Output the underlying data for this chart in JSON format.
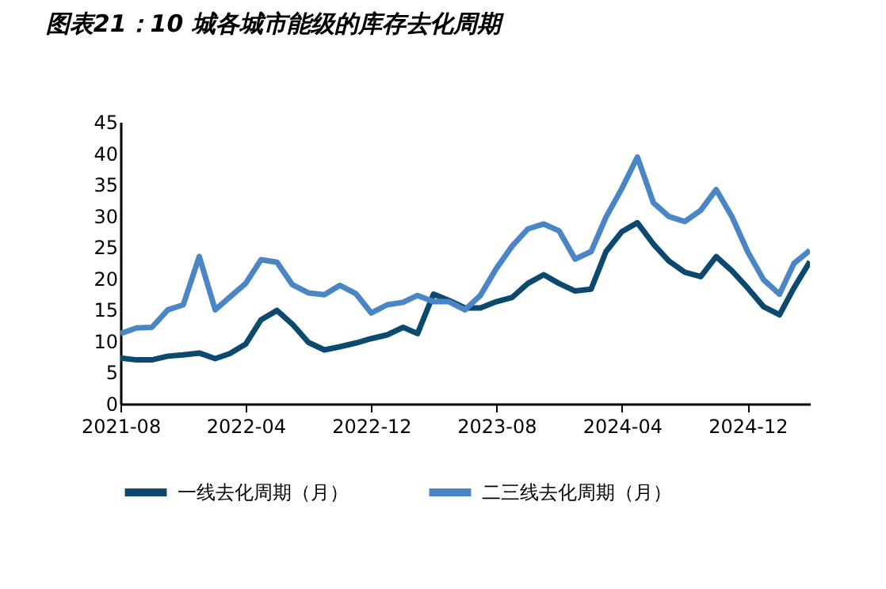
{
  "chart_data": {
    "type": "line",
    "title": "图表21：10 城各城市能级的库存去化周期",
    "x": [
      "2021-08",
      "2021-09",
      "2021-10",
      "2021-11",
      "2021-12",
      "2022-01",
      "2022-02",
      "2022-03",
      "2022-04",
      "2022-05",
      "2022-06",
      "2022-07",
      "2022-08",
      "2022-09",
      "2022-10",
      "2022-11",
      "2022-12",
      "2023-01",
      "2023-02",
      "2023-03",
      "2023-04",
      "2023-05",
      "2023-06",
      "2023-07",
      "2023-08",
      "2023-09",
      "2023-10",
      "2023-11",
      "2023-12",
      "2024-01",
      "2024-02",
      "2024-03",
      "2024-04",
      "2024-05",
      "2024-06",
      "2024-07",
      "2024-08",
      "2024-09",
      "2024-10",
      "2024-11",
      "2024-12",
      "2025-01",
      "2025-02",
      "2025-03",
      "2025-04"
    ],
    "series": [
      {
        "name": "一线去化周期（月）",
        "color": "#0b4a6e",
        "values": [
          7.3,
          7.0,
          7.0,
          7.6,
          7.8,
          8.1,
          7.2,
          8.0,
          9.5,
          13.4,
          14.9,
          12.7,
          9.8,
          8.6,
          9.1,
          9.7,
          10.4,
          11.0,
          12.2,
          11.2,
          17.5,
          16.5,
          15.3,
          15.3,
          16.3,
          17.0,
          19.2,
          20.6,
          19.2,
          18.0,
          18.3,
          24.3,
          27.5,
          28.9,
          25.5,
          22.8,
          21.0,
          20.3,
          23.5,
          21.2,
          18.5,
          15.5,
          14.2,
          18.5,
          22.7
        ]
      },
      {
        "name": "二三线去化周期（月）",
        "color": "#4a86c5",
        "values": [
          11.2,
          12.1,
          12.2,
          15.0,
          15.8,
          23.5,
          15.0,
          17.0,
          19.2,
          23.0,
          22.6,
          19.0,
          17.7,
          17.4,
          18.9,
          17.6,
          14.5,
          15.8,
          16.2,
          17.3,
          16.3,
          16.3,
          15.0,
          17.3,
          21.6,
          25.2,
          27.9,
          28.7,
          27.6,
          23.1,
          24.3,
          29.8,
          34.4,
          39.4,
          32.1,
          29.9,
          29.1,
          30.9,
          34.2,
          29.8,
          24.3,
          19.8,
          17.5,
          22.4,
          24.5
        ]
      }
    ],
    "xlim": [
      "2021-08",
      "2025-04"
    ],
    "xticks": [
      "2021-08",
      "2022-04",
      "2022-12",
      "2023-08",
      "2024-04",
      "2024-12"
    ],
    "ylim": [
      0,
      45
    ],
    "yticks": [
      0,
      5,
      10,
      15,
      20,
      25,
      30,
      35,
      40,
      45
    ],
    "grid": false,
    "legend": "bottom"
  }
}
